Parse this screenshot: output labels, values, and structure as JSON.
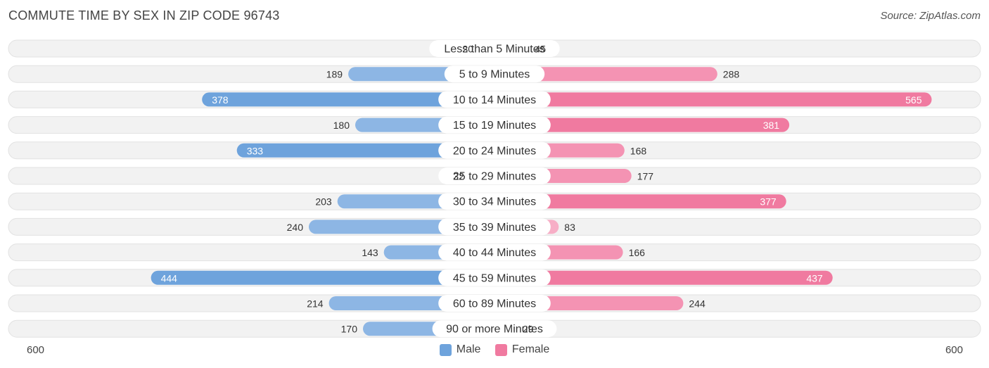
{
  "title": "COMMUTE TIME BY SEX IN ZIP CODE 96743",
  "source": "Source: ZipAtlas.com",
  "colors": {
    "male": "#6ea3dc",
    "male_light": "#a9c8ec",
    "female": "#f07aa0",
    "female_light": "#f7aec6",
    "row_bg": "#efefef"
  },
  "legend": {
    "male_label": "Male",
    "female_label": "Female"
  },
  "axis": {
    "left_label": "600",
    "right_label": "600"
  },
  "chart_data": {
    "type": "bar",
    "orientation": "horizontal-diverging",
    "title": "COMMUTE TIME BY SEX IN ZIP CODE 96743",
    "xlim": [
      -600,
      600
    ],
    "categories": [
      "Less than 5 Minutes",
      "5 to 9 Minutes",
      "10 to 14 Minutes",
      "15 to 19 Minutes",
      "20 to 24 Minutes",
      "25 to 29 Minutes",
      "30 to 34 Minutes",
      "35 to 39 Minutes",
      "40 to 44 Minutes",
      "45 to 59 Minutes",
      "60 to 89 Minutes",
      "90 or more Minutes"
    ],
    "series": [
      {
        "name": "Male",
        "values": [
          20,
          189,
          378,
          180,
          333,
          32,
          203,
          240,
          143,
          444,
          214,
          170
        ]
      },
      {
        "name": "Female",
        "values": [
          45,
          288,
          565,
          381,
          168,
          177,
          377,
          83,
          166,
          437,
          244,
          29
        ]
      }
    ],
    "legend_position": "bottom-center"
  }
}
